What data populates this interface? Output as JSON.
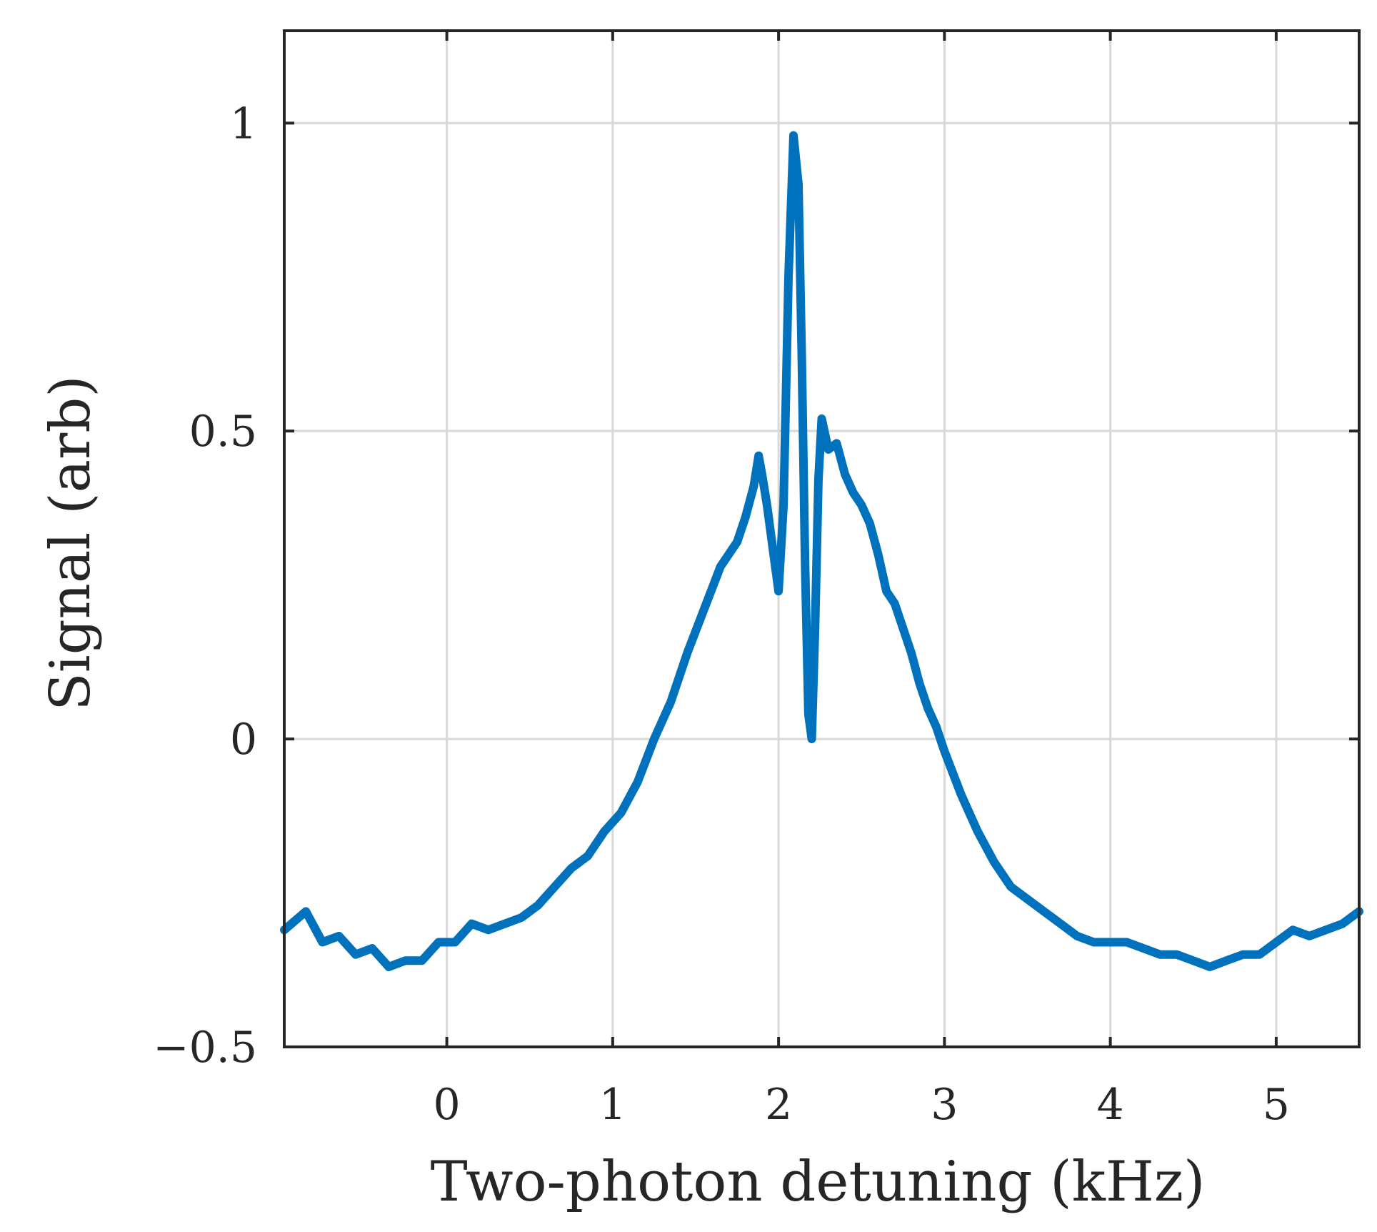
{
  "chart_data": {
    "type": "line",
    "title": "",
    "xlabel": "Two-photon detuning (kHz)",
    "ylabel": "Signal (arb)",
    "xlim": [
      -0.98,
      5.5
    ],
    "ylim": [
      -0.5,
      1.15
    ],
    "xticks": [
      0,
      1,
      2,
      3,
      4,
      5
    ],
    "xtick_labels": [
      "0",
      "1",
      "2",
      "3",
      "4",
      "5"
    ],
    "yticks": [
      -0.5,
      0,
      0.5,
      1
    ],
    "ytick_labels": [
      "−0.5",
      "0",
      "0.5",
      "1"
    ],
    "grid": true,
    "line_color": "#0072BD",
    "axis_color": "#262626",
    "series": [
      {
        "name": "Signal",
        "x": [
          -0.98,
          -0.85,
          -0.75,
          -0.65,
          -0.55,
          -0.45,
          -0.35,
          -0.25,
          -0.15,
          -0.05,
          0.05,
          0.15,
          0.25,
          0.35,
          0.45,
          0.55,
          0.65,
          0.75,
          0.85,
          0.95,
          1.05,
          1.15,
          1.25,
          1.35,
          1.45,
          1.55,
          1.65,
          1.75,
          1.8,
          1.85,
          1.88,
          1.9,
          1.93,
          1.97,
          2.0,
          2.03,
          2.06,
          2.09,
          2.12,
          2.14,
          2.16,
          2.18,
          2.2,
          2.22,
          2.24,
          2.26,
          2.3,
          2.35,
          2.4,
          2.45,
          2.5,
          2.55,
          2.6,
          2.65,
          2.7,
          2.75,
          2.8,
          2.85,
          2.9,
          2.95,
          3.0,
          3.1,
          3.2,
          3.3,
          3.4,
          3.5,
          3.6,
          3.7,
          3.8,
          3.9,
          4.0,
          4.1,
          4.2,
          4.3,
          4.4,
          4.5,
          4.6,
          4.7,
          4.8,
          4.9,
          5.0,
          5.1,
          5.2,
          5.3,
          5.4,
          5.5
        ],
        "y": [
          -0.31,
          -0.28,
          -0.33,
          -0.32,
          -0.35,
          -0.34,
          -0.37,
          -0.36,
          -0.36,
          -0.33,
          -0.33,
          -0.3,
          -0.31,
          -0.3,
          -0.29,
          -0.27,
          -0.24,
          -0.21,
          -0.19,
          -0.15,
          -0.12,
          -0.07,
          0.0,
          0.06,
          0.14,
          0.21,
          0.28,
          0.32,
          0.36,
          0.41,
          0.46,
          0.43,
          0.38,
          0.3,
          0.24,
          0.38,
          0.75,
          0.98,
          0.9,
          0.62,
          0.28,
          0.04,
          0.0,
          0.18,
          0.42,
          0.52,
          0.47,
          0.48,
          0.43,
          0.4,
          0.38,
          0.35,
          0.3,
          0.24,
          0.22,
          0.18,
          0.14,
          0.09,
          0.05,
          0.02,
          -0.02,
          -0.09,
          -0.15,
          -0.2,
          -0.24,
          -0.26,
          -0.28,
          -0.3,
          -0.32,
          -0.33,
          -0.33,
          -0.33,
          -0.34,
          -0.35,
          -0.35,
          -0.36,
          -0.37,
          -0.36,
          -0.35,
          -0.35,
          -0.33,
          -0.31,
          -0.32,
          -0.31,
          -0.3,
          -0.28
        ]
      }
    ]
  }
}
